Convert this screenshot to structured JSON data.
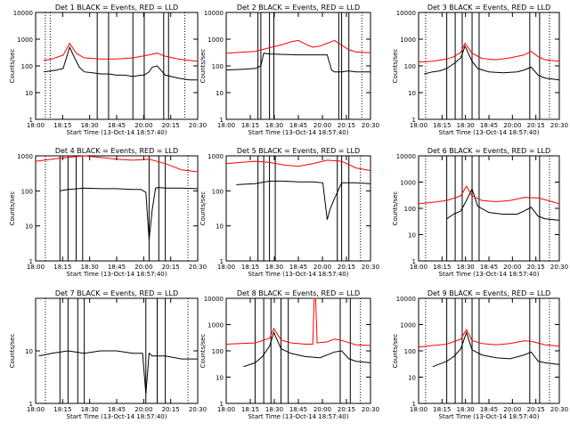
{
  "chart_data": [
    {
      "type": "line",
      "title": "Det 1 BLACK = Events, RED = LLD",
      "xlabel": "Start Time (13-Oct-14 18:57:40)",
      "ylabel": "Counts/sec",
      "ylim": [
        1,
        10000
      ],
      "yscale": "log",
      "x_ticks": [
        "18:00",
        "18:15",
        "18:30",
        "18:45",
        "20:00",
        "20:15",
        "20:30"
      ],
      "y_ticks": [
        "1",
        "10",
        "100",
        "1000",
        "10000"
      ],
      "markers_solid": [
        0.38,
        0.45,
        0.6,
        0.67,
        0.79,
        0.82
      ],
      "markers_dotted": [
        0.06,
        0.09,
        0.92
      ],
      "series": [
        {
          "name": "Events",
          "color": "#000000",
          "x": [
            0.05,
            0.13,
            0.15,
            0.17,
            0.21,
            0.24,
            0.27,
            0.3,
            0.35,
            0.4,
            0.45,
            0.5,
            0.55,
            0.6,
            0.65,
            0.67,
            0.7,
            0.72,
            0.75,
            0.8,
            0.88,
            0.95,
            1.0
          ],
          "y": [
            60,
            70,
            75,
            80,
            500,
            200,
            90,
            60,
            55,
            50,
            50,
            45,
            45,
            40,
            45,
            45,
            60,
            90,
            100,
            45,
            35,
            30,
            30
          ]
        },
        {
          "name": "LLD",
          "color": "#ff0000",
          "x": [
            0.05,
            0.1,
            0.15,
            0.17,
            0.21,
            0.25,
            0.3,
            0.4,
            0.5,
            0.6,
            0.7,
            0.75,
            0.8,
            0.88,
            0.95,
            1.0
          ],
          "y": [
            160,
            180,
            230,
            250,
            700,
            300,
            200,
            180,
            180,
            200,
            260,
            300,
            230,
            180,
            160,
            150
          ]
        }
      ]
    },
    {
      "type": "line",
      "title": "Det 2 BLACK = Events, RED = LLD",
      "xlabel": "Start Time (13-Oct-14 18:57:40)",
      "ylabel": "Counts/sec",
      "ylim": [
        1,
        10000
      ],
      "yscale": "log",
      "x_ticks": [
        "18:00",
        "18:15",
        "18:30",
        "18:45",
        "20:00",
        "20:15",
        "20:30"
      ],
      "y_ticks": [
        "1",
        "10",
        "100",
        "1000",
        "10000"
      ],
      "markers_solid": [
        0.22,
        0.24,
        0.3,
        0.33,
        0.78,
        0.8,
        0.85
      ],
      "markers_dotted": [
        0.94
      ],
      "series": [
        {
          "name": "Events",
          "color": "#000000",
          "x": [
            0.0,
            0.12,
            0.2,
            0.24,
            0.26,
            0.3,
            0.4,
            0.5,
            0.6,
            0.65,
            0.7,
            0.73,
            0.75,
            0.8,
            0.85,
            0.9,
            1.0
          ],
          "y": [
            70,
            75,
            80,
            100,
            300,
            280,
            270,
            260,
            260,
            260,
            260,
            70,
            60,
            60,
            65,
            60,
            60
          ]
        },
        {
          "name": "LLD",
          "color": "#ff0000",
          "x": [
            0.0,
            0.1,
            0.2,
            0.3,
            0.4,
            0.45,
            0.5,
            0.55,
            0.6,
            0.65,
            0.7,
            0.75,
            0.8,
            0.85,
            0.9,
            1.0
          ],
          "y": [
            300,
            320,
            350,
            480,
            650,
            800,
            900,
            650,
            500,
            550,
            700,
            900,
            600,
            400,
            330,
            310
          ]
        }
      ]
    },
    {
      "type": "line",
      "title": "Det 3 BLACK = Events, RED = LLD",
      "xlabel": "Start Time (13-Oct-14 18:57:40)",
      "ylabel": "Counts/sec",
      "ylim": [
        1,
        10000
      ],
      "yscale": "log",
      "x_ticks": [
        "18:00",
        "18:15",
        "18:30",
        "18:45",
        "20:00",
        "20:15",
        "20:30"
      ],
      "y_ticks": [
        "1",
        "10",
        "100",
        "1000",
        "10000"
      ],
      "markers_solid": [
        0.2,
        0.26,
        0.31,
        0.38,
        0.43,
        0.79,
        0.86
      ],
      "markers_dotted": [
        0.05,
        0.93
      ],
      "series": [
        {
          "name": "Events",
          "color": "#000000",
          "x": [
            0.04,
            0.1,
            0.15,
            0.2,
            0.25,
            0.3,
            0.33,
            0.38,
            0.42,
            0.5,
            0.6,
            0.7,
            0.75,
            0.8,
            0.85,
            0.9,
            1.0
          ],
          "y": [
            50,
            60,
            65,
            80,
            120,
            200,
            550,
            150,
            80,
            60,
            55,
            60,
            70,
            90,
            45,
            35,
            30
          ]
        },
        {
          "name": "LLD",
          "color": "#ff0000",
          "x": [
            0.0,
            0.1,
            0.2,
            0.25,
            0.3,
            0.33,
            0.38,
            0.45,
            0.55,
            0.65,
            0.75,
            0.8,
            0.85,
            0.9,
            1.0
          ],
          "y": [
            140,
            150,
            180,
            220,
            320,
            700,
            300,
            190,
            170,
            200,
            260,
            350,
            220,
            170,
            150
          ]
        }
      ]
    },
    {
      "type": "line",
      "title": "Det 4 BLACK = Events, RED = LLD",
      "xlabel": "Start Time (13-Oct-14 18:57:40)",
      "ylabel": "Counts/sec",
      "ylim": [
        1,
        1000
      ],
      "yscale": "log",
      "x_ticks": [
        "18:00",
        "18:15",
        "18:30",
        "18:45",
        "20:00",
        "20:15",
        "20:30"
      ],
      "y_ticks": [
        "1",
        "10",
        "100",
        "1000"
      ],
      "markers_solid": [
        0.15,
        0.2,
        0.25,
        0.29,
        0.7,
        0.76,
        0.8
      ],
      "markers_dotted": [
        0.06,
        0.94
      ],
      "series": [
        {
          "name": "Events",
          "color": "#000000",
          "x": [
            0.15,
            0.2,
            0.3,
            0.4,
            0.5,
            0.6,
            0.65,
            0.68,
            0.7,
            0.72,
            0.74,
            0.76,
            0.8,
            0.9,
            1.0
          ],
          "y": [
            100,
            110,
            120,
            115,
            115,
            110,
            110,
            90,
            4,
            30,
            120,
            125,
            120,
            120,
            115
          ]
        },
        {
          "name": "LLD",
          "color": "#ff0000",
          "x": [
            0.0,
            0.1,
            0.2,
            0.3,
            0.4,
            0.5,
            0.6,
            0.7,
            0.8,
            0.9,
            1.0
          ],
          "y": [
            700,
            800,
            900,
            1000,
            900,
            800,
            750,
            800,
            600,
            400,
            350
          ]
        }
      ]
    },
    {
      "type": "line",
      "title": "Det 5 BLACK = Events, RED = LLD",
      "xlabel": "Start Time (13-Oct-14 18:57:40)",
      "ylabel": "Counts/sec",
      "ylim": [
        1,
        1000
      ],
      "yscale": "log",
      "x_ticks": [
        "18:00",
        "18:15",
        "18:30",
        "18:45",
        "20:00",
        "20:15",
        "20:30"
      ],
      "y_ticks": [
        "1",
        "10",
        "100",
        "1000"
      ],
      "markers_solid": [
        0.22,
        0.26,
        0.3,
        0.34,
        0.77,
        0.8,
        0.85
      ],
      "markers_dotted": [
        0.93
      ],
      "series": [
        {
          "name": "Events",
          "color": "#000000",
          "x": [
            0.07,
            0.2,
            0.3,
            0.4,
            0.5,
            0.6,
            0.67,
            0.7,
            0.72,
            0.75,
            0.8,
            0.9,
            1.0
          ],
          "y": [
            150,
            160,
            190,
            190,
            180,
            180,
            170,
            15,
            30,
            60,
            170,
            170,
            160
          ]
        },
        {
          "name": "LLD",
          "color": "#ff0000",
          "x": [
            0.0,
            0.1,
            0.2,
            0.3,
            0.4,
            0.5,
            0.6,
            0.7,
            0.8,
            0.9,
            1.0
          ],
          "y": [
            600,
            650,
            700,
            650,
            550,
            500,
            600,
            750,
            700,
            450,
            380
          ]
        }
      ]
    },
    {
      "type": "line",
      "title": "Det 6 BLACK = Events, RED = LLD",
      "xlabel": "Start Time (13-Oct-14 18:57:40)",
      "ylabel": "Counts/sec",
      "ylim": [
        1,
        10000
      ],
      "yscale": "log",
      "x_ticks": [
        "18:00",
        "18:15",
        "18:30",
        "18:45",
        "20:00",
        "20:15",
        "20:30"
      ],
      "y_ticks": [
        "1",
        "10",
        "100",
        "1000",
        "10000"
      ],
      "markers_solid": [
        0.2,
        0.26,
        0.31,
        0.38,
        0.43,
        0.79,
        0.86
      ],
      "markers_dotted": [
        0.05,
        0.93
      ],
      "series": [
        {
          "name": "Events",
          "color": "#000000",
          "x": [
            0.2,
            0.25,
            0.3,
            0.34,
            0.38,
            0.42,
            0.5,
            0.6,
            0.7,
            0.75,
            0.8,
            0.85,
            0.9,
            1.0
          ],
          "y": [
            40,
            60,
            80,
            200,
            550,
            120,
            70,
            60,
            60,
            80,
            110,
            50,
            40,
            35
          ]
        },
        {
          "name": "LLD",
          "color": "#ff0000",
          "x": [
            0.0,
            0.1,
            0.2,
            0.3,
            0.34,
            0.38,
            0.45,
            0.55,
            0.65,
            0.75,
            0.85,
            0.95,
            1.0
          ],
          "y": [
            150,
            170,
            200,
            300,
            700,
            300,
            200,
            180,
            200,
            260,
            250,
            180,
            150
          ]
        }
      ]
    },
    {
      "type": "line",
      "title": "Det 7 BLACK = Events, RED = LLD",
      "xlabel": "Start Time (13-Oct-14 18:57:40)",
      "ylabel": "Counts/sec",
      "ylim": [
        1,
        100
      ],
      "yscale": "log",
      "x_ticks": [
        "18:00",
        "18:15",
        "18:30",
        "18:45",
        "20:00",
        "20:15",
        "20:30"
      ],
      "y_ticks": [
        "1",
        "10"
      ],
      "markers_solid": [
        0.15,
        0.2,
        0.26,
        0.3,
        0.68,
        0.75,
        0.8
      ],
      "markers_dotted": [
        0.06,
        0.94
      ],
      "series": [
        {
          "name": "Events",
          "color": "#000000",
          "x": [
            0.02,
            0.1,
            0.2,
            0.3,
            0.4,
            0.5,
            0.6,
            0.66,
            0.68,
            0.7,
            0.72,
            0.8,
            0.9,
            1.0
          ],
          "y": [
            8,
            9,
            10,
            9,
            10,
            10,
            9,
            9,
            1.5,
            9,
            8,
            8,
            7,
            7
          ]
        }
      ]
    },
    {
      "type": "line",
      "title": "Det 8 BLACK = Events, RED = LLD",
      "xlabel": "Start Time (13-Oct-14 18:57:40)",
      "ylabel": "Counts/sec",
      "ylim": [
        1,
        10000
      ],
      "yscale": "log",
      "x_ticks": [
        "18:00",
        "18:15",
        "18:30",
        "18:45",
        "20:00",
        "20:15",
        "20:30"
      ],
      "y_ticks": [
        "1",
        "10",
        "100",
        "1000",
        "10000"
      ],
      "markers_solid": [
        0.2,
        0.26,
        0.31,
        0.38,
        0.43,
        0.79,
        0.86
      ],
      "markers_dotted": [
        0.93
      ],
      "series": [
        {
          "name": "Events",
          "color": "#000000",
          "x": [
            0.12,
            0.2,
            0.25,
            0.3,
            0.33,
            0.38,
            0.45,
            0.55,
            0.65,
            0.75,
            0.8,
            0.85,
            0.9,
            1.0
          ],
          "y": [
            25,
            35,
            60,
            150,
            500,
            120,
            80,
            60,
            55,
            90,
            100,
            50,
            40,
            35
          ]
        },
        {
          "name": "LLD",
          "color": "#ff0000",
          "x": [
            0.0,
            0.1,
            0.2,
            0.3,
            0.33,
            0.38,
            0.45,
            0.55,
            0.6,
            0.61,
            0.62,
            0.63,
            0.7,
            0.75,
            0.8,
            0.9,
            1.0
          ],
          "y": [
            180,
            190,
            200,
            300,
            700,
            260,
            200,
            180,
            180,
            10000,
            10000,
            200,
            220,
            280,
            250,
            170,
            160
          ]
        }
      ]
    },
    {
      "type": "line",
      "title": "Det 9 BLACK = Events, RED = LLD",
      "xlabel": "Start Time (13-Oct-14 18:57:40)",
      "ylabel": "Counts/sec",
      "ylim": [
        1,
        10000
      ],
      "yscale": "log",
      "x_ticks": [
        "18:00",
        "18:15",
        "18:30",
        "18:45",
        "20:00",
        "20:15",
        "20:30"
      ],
      "y_ticks": [
        "1",
        "10",
        "100",
        "1000",
        "10000"
      ],
      "markers_solid": [
        0.2,
        0.26,
        0.31,
        0.38,
        0.43,
        0.79,
        0.86
      ],
      "markers_dotted": [
        0.05,
        0.93
      ],
      "series": [
        {
          "name": "Events",
          "color": "#000000",
          "x": [
            0.1,
            0.2,
            0.25,
            0.3,
            0.34,
            0.38,
            0.45,
            0.55,
            0.65,
            0.75,
            0.8,
            0.85,
            0.9,
            1.0
          ],
          "y": [
            25,
            40,
            60,
            120,
            500,
            110,
            70,
            55,
            50,
            70,
            90,
            40,
            35,
            30
          ]
        },
        {
          "name": "LLD",
          "color": "#ff0000",
          "x": [
            0.0,
            0.1,
            0.2,
            0.3,
            0.34,
            0.38,
            0.45,
            0.55,
            0.65,
            0.75,
            0.8,
            0.9,
            1.0
          ],
          "y": [
            140,
            160,
            180,
            280,
            650,
            250,
            190,
            170,
            190,
            240,
            230,
            170,
            150
          ]
        }
      ]
    }
  ]
}
